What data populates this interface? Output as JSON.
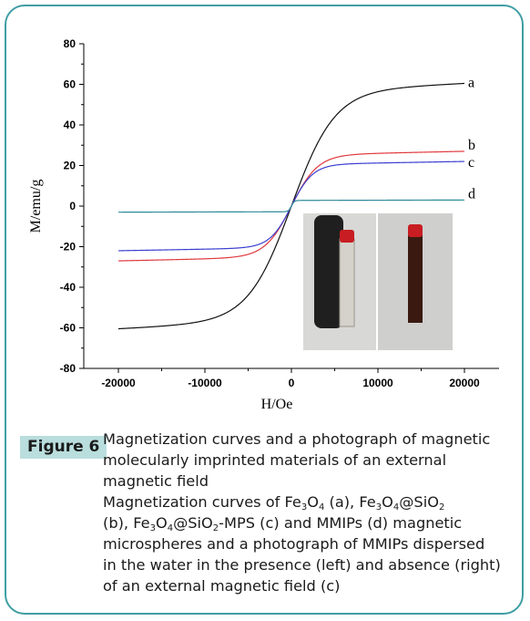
{
  "chart_data": {
    "type": "line",
    "xlabel": "H/Oe",
    "ylabel": "M/emu/g",
    "xlim": [
      -24000,
      24000
    ],
    "ylim": [
      -80,
      80
    ],
    "xticks": [
      "-20000",
      "-10000",
      "0",
      "10000",
      "20000"
    ],
    "yticks": [
      "80",
      "60",
      "40",
      "20",
      "0",
      "-20",
      "-40",
      "-60",
      "-80"
    ],
    "grid": false,
    "series": [
      {
        "name": "a",
        "color": "#111111",
        "ms": 60.5,
        "slope": 9.0,
        "h0": 550
      },
      {
        "name": "b",
        "color": "#e0393e",
        "ms": 27.0,
        "slope": 5.5,
        "h0": 550
      },
      {
        "name": "c",
        "color": "#3b3fd0",
        "ms": 22.0,
        "slope": 4.5,
        "h0": 550
      },
      {
        "name": "d",
        "color": "#2c8a9a",
        "ms": 3.0,
        "slope": 0.6,
        "h0": 550
      }
    ]
  },
  "inset": {
    "label": "photograph of MMIPs with and without external magnet",
    "colors": {
      "bg": "#d8d8d6",
      "magnet": "#1f1f1f",
      "vial": "#d5d2cc",
      "cap": "#c81d22",
      "liquid": "#3a1a10"
    }
  },
  "caption": {
    "badge": "Figure 6",
    "line1": "Magnetization curves and a photograph of magnetic",
    "line2": "molecularly imprinted materials of an external",
    "line3": "magnetic field",
    "l4a": "Magnetization curves of Fe",
    "sub3": "3",
    "o4": "O",
    "sub4": "4",
    "l4b": " (a), Fe",
    "l4c": "@SiO",
    "sub2": "2",
    "l5a": "(b), Fe",
    "l5c": "-MPS (c) and MMIPs (d) magnetic",
    "line6": "microspheres and a photograph of MMIPs dispersed",
    "line7": "in the water in the presence (left) and absence (right)",
    "line8": "of an external magnetic field (c)"
  }
}
